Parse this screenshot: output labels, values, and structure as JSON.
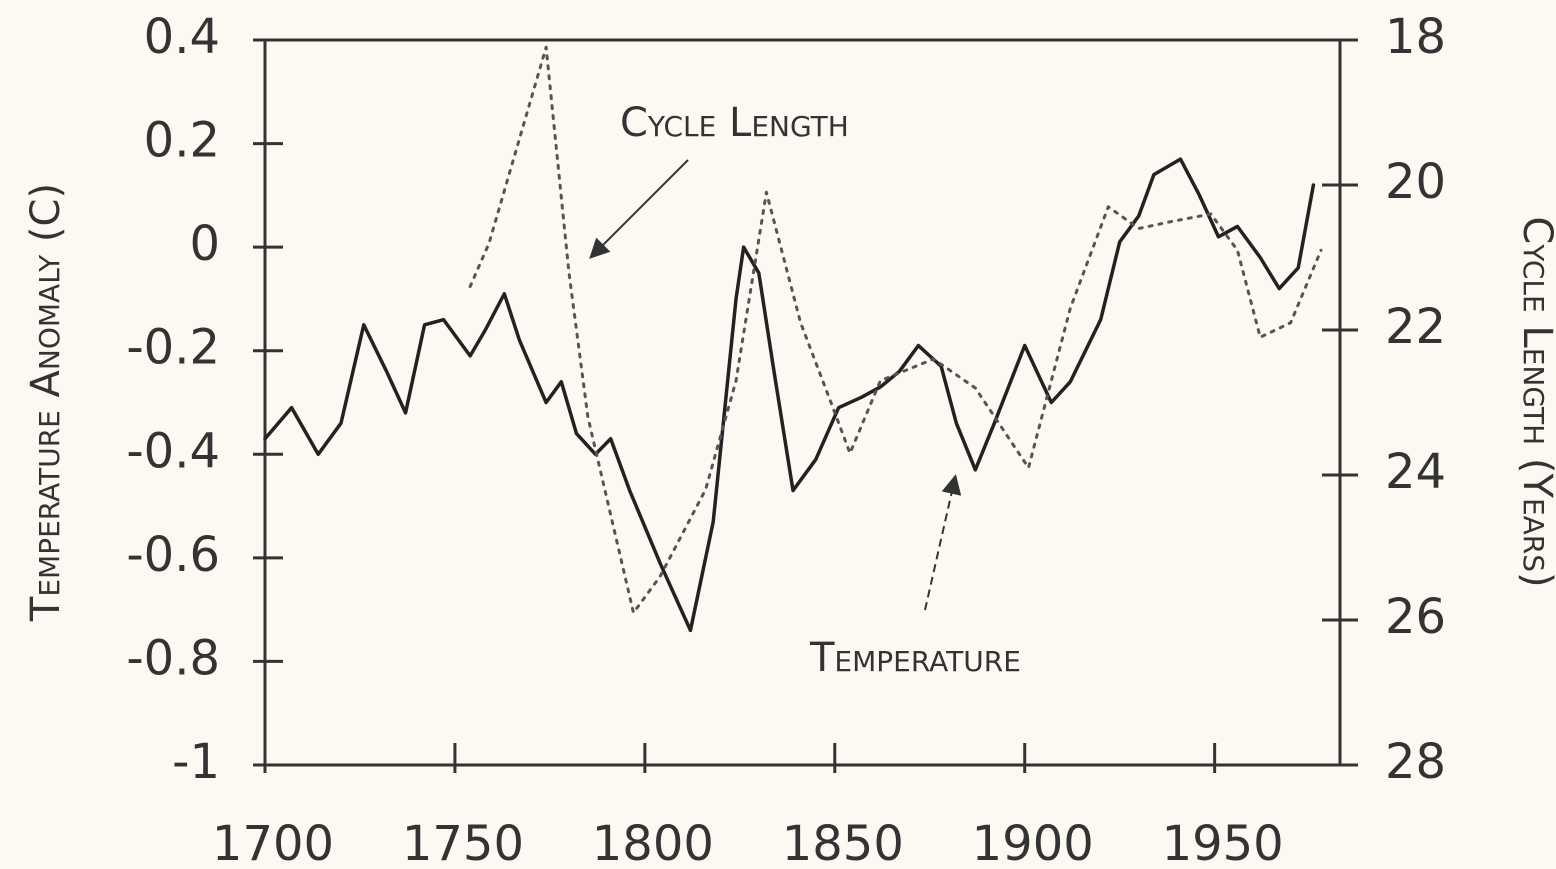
{
  "chart_data": {
    "type": "line",
    "ylabel": "Temperature Anomaly (C)",
    "y2label": "Cycle Length (Years)",
    "xlim": [
      1700,
      1983
    ],
    "xticks": [
      1700,
      1750,
      1800,
      1850,
      1900,
      1950
    ],
    "ylim": [
      -1,
      0.4
    ],
    "yticks": [
      0.4,
      0.2,
      0,
      -0.2,
      -0.4,
      -0.6,
      -0.8,
      -1
    ],
    "y2lim": [
      28,
      18
    ],
    "y2ticks": [
      18,
      20,
      22,
      24,
      26,
      28
    ],
    "series": [
      {
        "name": "Temperature",
        "color": "#222222",
        "style": "solid",
        "x": [
          1700,
          1707,
          1714,
          1720,
          1726,
          1732,
          1737,
          1742,
          1747,
          1754,
          1758,
          1763,
          1767,
          1774,
          1778,
          1782,
          1787,
          1791,
          1796,
          1804,
          1812,
          1818,
          1824,
          1826,
          1830,
          1834,
          1839,
          1845,
          1851,
          1857,
          1862,
          1867,
          1872,
          1878,
          1882,
          1887,
          1892,
          1900,
          1907,
          1912,
          1920,
          1925,
          1930,
          1934,
          1941,
          1946,
          1951,
          1956,
          1962,
          1967,
          1972,
          1976
        ],
        "values": [
          -0.37,
          -0.31,
          -0.4,
          -0.34,
          -0.15,
          -0.24,
          -0.32,
          -0.15,
          -0.14,
          -0.21,
          -0.16,
          -0.09,
          -0.18,
          -0.3,
          -0.26,
          -0.36,
          -0.4,
          -0.37,
          -0.47,
          -0.61,
          -0.74,
          -0.53,
          -0.1,
          0,
          -0.05,
          -0.24,
          -0.47,
          -0.41,
          -0.31,
          -0.29,
          -0.27,
          -0.24,
          -0.19,
          -0.23,
          -0.34,
          -0.43,
          -0.34,
          -0.19,
          -0.3,
          -0.26,
          -0.14,
          0.01,
          0.06,
          0.14,
          0.17,
          0.1,
          0.02,
          0.04,
          -0.02,
          -0.08,
          -0.04,
          0.12
        ]
      },
      {
        "name": "Cycle Length",
        "color": "#555555",
        "style": "dotted",
        "axis": "y2",
        "x": [
          1754,
          1759,
          1774,
          1780,
          1785,
          1797,
          1804,
          1816,
          1824,
          1832,
          1841,
          1849,
          1854,
          1862,
          1876,
          1887,
          1901,
          1912,
          1922,
          1930,
          1939,
          1949,
          1956,
          1962,
          1970,
          1978
        ],
        "values": [
          21.4,
          20.8,
          18.1,
          21.2,
          23.2,
          25.9,
          25.4,
          24.2,
          22.7,
          20.1,
          21.9,
          23.0,
          23.7,
          22.7,
          22.4,
          22.8,
          23.9,
          21.7,
          20.3,
          20.6,
          20.5,
          20.4,
          20.9,
          22.1,
          21.9,
          20.9
        ]
      }
    ]
  }
}
